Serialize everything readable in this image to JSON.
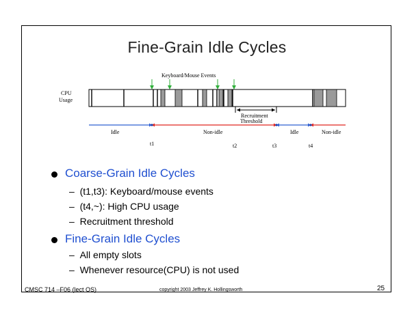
{
  "slide": {
    "title": "Fine-Grain Idle Cycles",
    "page_number": "25",
    "footer_left": "CMSC 714 –F06 (lect OS)",
    "footer_center": "copyright 2003 Jeffrey K. Hollingsworth"
  },
  "diagram": {
    "events_label": "Keyboard/Mouse Events",
    "cpu_label_line1": "CPU",
    "cpu_label_line2": "Usage",
    "threshold_line1": "Recruitment",
    "threshold_line2": "Threshold",
    "segments": [
      {
        "label": "Idle"
      },
      {
        "label": "Non-idle"
      },
      {
        "label": "Idle"
      },
      {
        "label": "Non-idle"
      }
    ],
    "times": [
      "t1",
      "t2",
      "t3",
      "t4"
    ],
    "colors": {
      "idle": "#2e5fd1",
      "non_idle": "#e0241f",
      "event_arrow": "#2fae3a",
      "block": "#9a9a9a"
    }
  },
  "bullets": [
    {
      "text": "Coarse-Grain Idle Cycles",
      "subs": [
        "(t1,t3): Keyboard/mouse events",
        "(t4,~): High CPU usage",
        "Recruitment threshold"
      ]
    },
    {
      "text": "Fine-Grain Idle Cycles",
      "subs": [
        "All empty slots",
        "Whenever resource(CPU) is not used"
      ]
    }
  ]
}
